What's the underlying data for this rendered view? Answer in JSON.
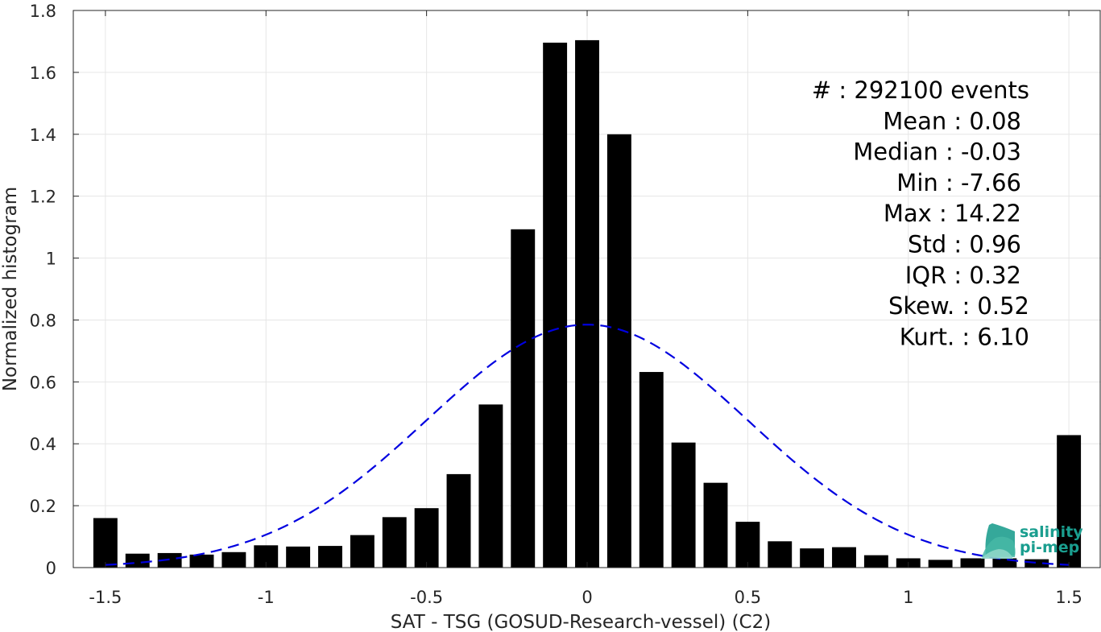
{
  "chart_data": {
    "type": "bar",
    "xlabel": "SAT - TSG (GOSUD-Research-vessel) (C2)",
    "ylabel": "Normalized histogram",
    "xlim": [
      -1.6,
      1.6
    ],
    "ylim": [
      0,
      1.8
    ],
    "grid": true,
    "x_ticks": [
      -1.5,
      -1,
      -0.5,
      0,
      0.5,
      1,
      1.5
    ],
    "x_tick_labels": [
      "-1.5",
      "-1",
      "-0.5",
      "0",
      "0.5",
      "1",
      "1.5"
    ],
    "y_ticks": [
      0,
      0.2,
      0.4,
      0.6,
      0.8,
      1,
      1.2,
      1.4,
      1.6,
      1.8
    ],
    "y_tick_labels": [
      "0",
      "0.2",
      "0.4",
      "0.6",
      "0.8",
      "1",
      "1.2",
      "1.4",
      "1.6",
      "1.8"
    ],
    "bar_width": 0.075,
    "bar_color": "#000000",
    "bins": [
      {
        "x": -1.5,
        "y": 0.16
      },
      {
        "x": -1.4,
        "y": 0.045
      },
      {
        "x": -1.3,
        "y": 0.047
      },
      {
        "x": -1.2,
        "y": 0.042
      },
      {
        "x": -1.1,
        "y": 0.05
      },
      {
        "x": -1.0,
        "y": 0.072
      },
      {
        "x": -0.9,
        "y": 0.068
      },
      {
        "x": -0.8,
        "y": 0.07
      },
      {
        "x": -0.7,
        "y": 0.105
      },
      {
        "x": -0.6,
        "y": 0.163
      },
      {
        "x": -0.5,
        "y": 0.192
      },
      {
        "x": -0.4,
        "y": 0.302
      },
      {
        "x": -0.3,
        "y": 0.527
      },
      {
        "x": -0.2,
        "y": 1.093
      },
      {
        "x": -0.1,
        "y": 1.696
      },
      {
        "x": 0.0,
        "y": 1.704
      },
      {
        "x": 0.1,
        "y": 1.4
      },
      {
        "x": 0.2,
        "y": 0.632
      },
      {
        "x": 0.3,
        "y": 0.404
      },
      {
        "x": 0.4,
        "y": 0.274
      },
      {
        "x": 0.5,
        "y": 0.148
      },
      {
        "x": 0.6,
        "y": 0.085
      },
      {
        "x": 0.7,
        "y": 0.062
      },
      {
        "x": 0.8,
        "y": 0.066
      },
      {
        "x": 0.9,
        "y": 0.04
      },
      {
        "x": 1.0,
        "y": 0.03
      },
      {
        "x": 1.1,
        "y": 0.025
      },
      {
        "x": 1.2,
        "y": 0.03
      },
      {
        "x": 1.3,
        "y": 0.03
      },
      {
        "x": 1.4,
        "y": 0.027
      },
      {
        "x": 1.5,
        "y": 0.428
      }
    ],
    "fit_curve": {
      "type": "gaussian",
      "mean": 0.0,
      "peak": 0.785,
      "std": 0.5,
      "x_range": [
        -1.5,
        1.5
      ],
      "color": "#0000e0",
      "style": "dashed"
    },
    "stats": [
      {
        "label": "#  : 292100 events"
      },
      {
        "label": "Mean : 0.08"
      },
      {
        "label": "Median : -0.03"
      },
      {
        "label": "Min : -7.66"
      },
      {
        "label": "Max : 14.22"
      },
      {
        "label": "Std : 0.96"
      },
      {
        "label": "IQR : 0.32"
      },
      {
        "label": "Skew. : 0.52"
      },
      {
        "label": "Kurt. : 6.10"
      }
    ]
  },
  "logo": {
    "line1": "salinity",
    "line2": "pi-mep",
    "color": "#1a9e8f"
  }
}
